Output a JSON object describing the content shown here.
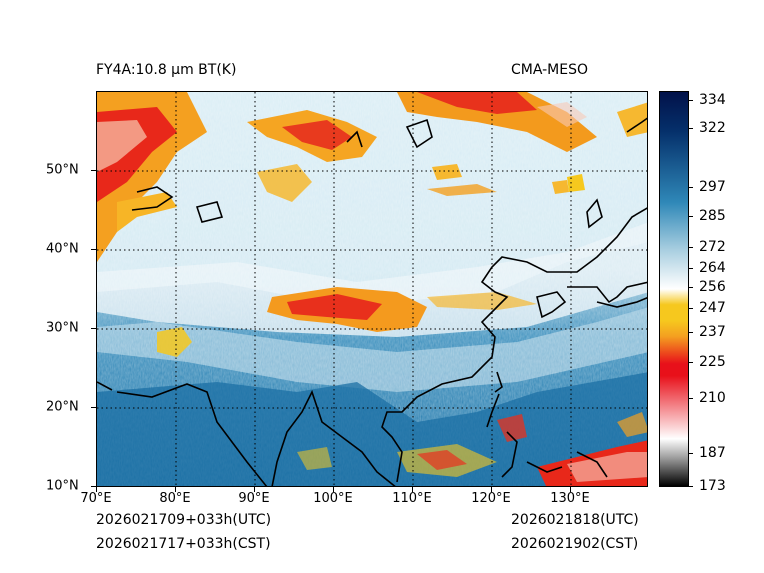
{
  "header": {
    "left_title": "FY4A:10.8 µm BT(K)",
    "right_title": "CMA-MESO"
  },
  "footer": {
    "init_utc": "2026021709+033h(UTC)",
    "init_cst": "2026021717+033h(CST)",
    "valid_utc": "2026021818(UTC)",
    "valid_cst": "2026021902(CST)"
  },
  "map": {
    "lon_labels": [
      "70°E",
      "80°E",
      "90°E",
      "100°E",
      "110°E",
      "120°E",
      "130°E"
    ],
    "lat_labels": [
      "50°N",
      "40°N",
      "30°N",
      "20°N",
      "10°N"
    ],
    "lon_range": [
      70,
      140
    ],
    "lat_range": [
      10,
      60
    ]
  },
  "colorbar": {
    "min": 173,
    "max": 338,
    "ticks": [
      "334",
      "322",
      "297",
      "285",
      "272",
      "264",
      "256",
      "247",
      "237",
      "225",
      "210",
      "187",
      "173"
    ],
    "colors": {
      "cold_black": "#000000",
      "grey": "#9a9a9a",
      "red": "#e8101a",
      "orange": "#f4a020",
      "yellow": "#f6c81e",
      "white": "#ffffff",
      "light_blue": "#a8cee0",
      "mid_blue": "#2f88b8",
      "dark_blue": "#05306b",
      "navy": "#02124a"
    }
  }
}
